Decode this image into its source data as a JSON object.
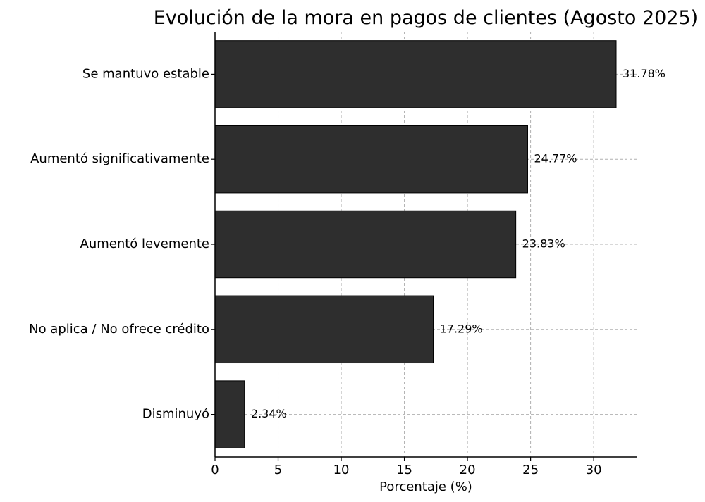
{
  "chart_data": {
    "type": "bar",
    "orientation": "horizontal",
    "title": "Evolución de la mora en pagos de clientes (Agosto 2025)",
    "xlabel": "Porcentaje (%)",
    "ylabel": "",
    "xlim": [
      0,
      33.4
    ],
    "xticks": [
      0,
      5,
      10,
      15,
      20,
      25,
      30
    ],
    "categories": [
      "Se mantuvo estable",
      "Aumentó significativamente",
      "Aumentó levemente",
      "No aplica / No ofrece crédito",
      "Disminuyó"
    ],
    "values": [
      31.78,
      24.77,
      23.83,
      17.29,
      2.34
    ],
    "value_labels": [
      "31.78%",
      "24.77%",
      "23.83%",
      "17.29%",
      "2.34%"
    ],
    "grid": true,
    "legend": "none",
    "colors": {
      "bar": "#2e2e2e",
      "bar_edge": "#000000",
      "grid": "#b0b0b0",
      "axis": "#000000"
    }
  }
}
